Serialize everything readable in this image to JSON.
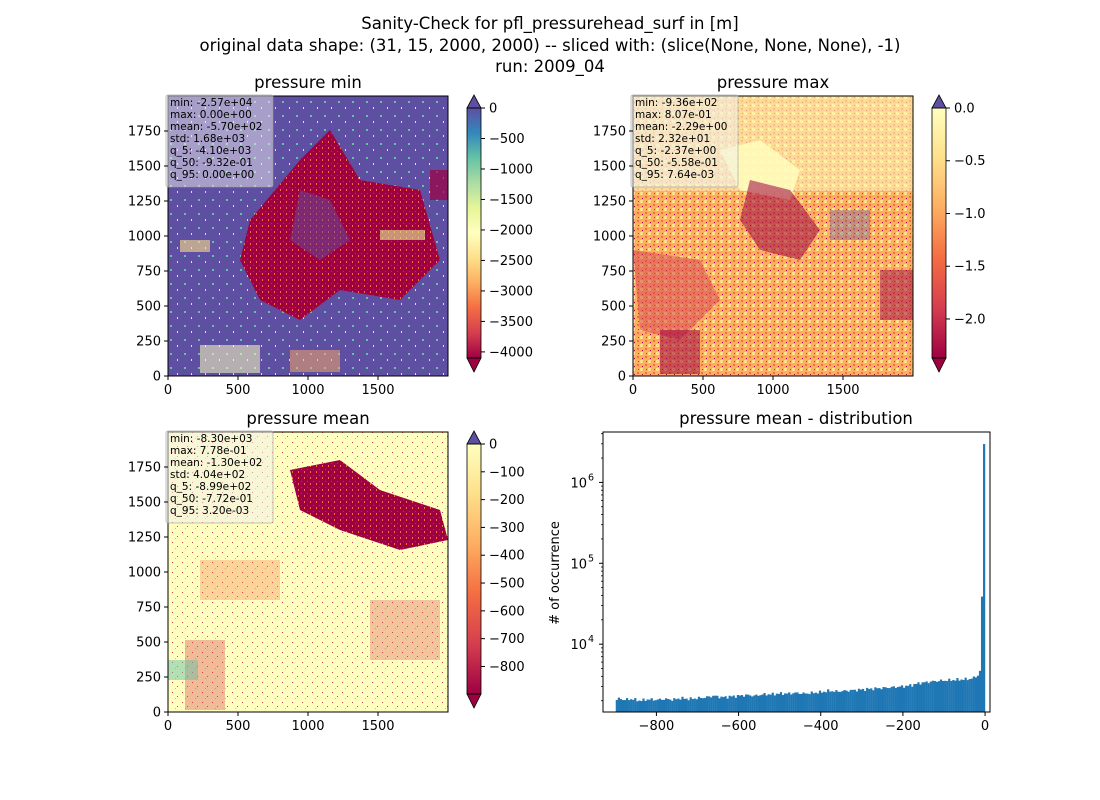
{
  "figure": {
    "suptitle": [
      "Sanity-Check for pfl_pressurehead_surf in [m]",
      "original data shape: (31, 15, 2000, 2000) -- sliced with: (slice(None, None, None), -1)",
      "run: 2009_04"
    ]
  },
  "chart_data": [
    {
      "type": "heatmap",
      "title": "pressure min",
      "xlabel": "",
      "ylabel": "",
      "xlim": [
        0,
        2000
      ],
      "ylim": [
        0,
        2000
      ],
      "xticks": [
        0,
        500,
        1000,
        1500
      ],
      "yticks": [
        0,
        250,
        500,
        750,
        1000,
        1250,
        1500,
        1750
      ],
      "colormap": "Spectral",
      "colorbar": {
        "range": [
          -4100,
          0
        ],
        "ticks": [
          0,
          -500,
          -1000,
          -1500,
          -2000,
          -2500,
          -3000,
          -3500,
          -4000
        ],
        "tick_labels": [
          "0",
          "−500",
          "−1000",
          "−1500",
          "−2000",
          "−2500",
          "−3000",
          "−3500",
          "−4000"
        ],
        "extend": "both"
      },
      "stats": [
        "min: -2.57e+04",
        "max: 0.00e+00",
        "mean: -5.70e+02",
        "std: 1.68e+03",
        "q_5: -4.10e+03",
        "q_50: -9.32e-01",
        "q_95: 0.00e+00"
      ]
    },
    {
      "type": "heatmap",
      "title": "pressure max",
      "xlabel": "",
      "ylabel": "",
      "xlim": [
        0,
        2000
      ],
      "ylim": [
        0,
        2000
      ],
      "xticks": [
        0,
        500,
        1000,
        1500
      ],
      "yticks": [
        0,
        250,
        500,
        750,
        1000,
        1250,
        1500,
        1750
      ],
      "colormap": "Spectral",
      "colorbar": {
        "range": [
          -2.37,
          0.0
        ],
        "ticks": [
          0.0,
          -0.5,
          -1.0,
          -1.5,
          -2.0
        ],
        "tick_labels": [
          "0.0",
          "−0.5",
          "−1.0",
          "−1.5",
          "−2.0"
        ],
        "extend": "both"
      },
      "stats": [
        "min: -9.36e+02",
        "max: 8.07e-01",
        "mean: -2.29e+00",
        "std: 2.32e+01",
        "q_5: -2.37e+00",
        "q_50: -5.58e-01",
        "q_95: 7.64e-03"
      ]
    },
    {
      "type": "heatmap",
      "title": "pressure mean",
      "xlabel": "",
      "ylabel": "",
      "xlim": [
        0,
        2000
      ],
      "ylim": [
        0,
        2000
      ],
      "xticks": [
        0,
        500,
        1000,
        1500
      ],
      "yticks": [
        0,
        250,
        500,
        750,
        1000,
        1250,
        1500,
        1750
      ],
      "colormap": "Spectral",
      "colorbar": {
        "range": [
          -899,
          0
        ],
        "ticks": [
          0,
          -100,
          -200,
          -300,
          -400,
          -500,
          -600,
          -700,
          -800
        ],
        "tick_labels": [
          "0",
          "−100",
          "−200",
          "−300",
          "−400",
          "−500",
          "−600",
          "−700",
          "−800"
        ],
        "extend": "both"
      },
      "stats": [
        "min: -8.30e+03",
        "max: 7.78e-01",
        "mean: -1.30e+02",
        "std: 4.04e+02",
        "q_5: -8.99e+02",
        "q_50: -7.72e-01",
        "q_95: 3.20e-03"
      ]
    },
    {
      "type": "bar",
      "title": "pressure mean - distribution",
      "xlabel": "",
      "ylabel": "# of occurrence",
      "yscale": "log",
      "xlim": [
        -930,
        12
      ],
      "ylim": [
        1450,
        4200000
      ],
      "xticks": [
        -800,
        -600,
        -400,
        -200,
        0
      ],
      "xtick_labels": [
        "−800",
        "−600",
        "−400",
        "−200",
        "0"
      ],
      "ytick_labels": [
        {
          "value": 10000,
          "base": "10",
          "exp": "4"
        },
        {
          "value": 100000,
          "base": "10",
          "exp": "5"
        },
        {
          "value": 1000000,
          "base": "10",
          "exp": "6"
        }
      ],
      "bin_range": [
        -899,
        0
      ],
      "bin_count": 180,
      "bar_color": "#1f77b4",
      "bin_edges_x": [
        -899,
        -890,
        -880,
        -860,
        -840,
        -820,
        -800,
        -780,
        -760,
        -740,
        -720,
        -700,
        -680,
        -660,
        -640,
        -620,
        -600,
        -580,
        -560,
        -540,
        -520,
        -500,
        -480,
        -460,
        -440,
        -420,
        -400,
        -380,
        -360,
        -340,
        -320,
        -300,
        -280,
        -260,
        -240,
        -220,
        -200,
        -180,
        -160,
        -140,
        -120,
        -100,
        -80,
        -60,
        -40,
        -30,
        -20,
        -15,
        -10,
        -7,
        -5,
        -3,
        -1,
        0
      ],
      "bin_counts_y": [
        2000,
        2150,
        2050,
        2100,
        2000,
        2080,
        2050,
        2100,
        2060,
        2150,
        2100,
        2150,
        2200,
        2300,
        2200,
        2250,
        2300,
        2350,
        2300,
        2400,
        2400,
        2450,
        2450,
        2500,
        2450,
        2500,
        2550,
        2650,
        2600,
        2650,
        2700,
        2750,
        2800,
        2850,
        2900,
        2950,
        3000,
        3100,
        3300,
        3400,
        3500,
        3550,
        3600,
        3650,
        3700,
        3800,
        4000,
        4300,
        5000,
        6500,
        9000,
        12000,
        38000,
        3000000
      ]
    }
  ]
}
